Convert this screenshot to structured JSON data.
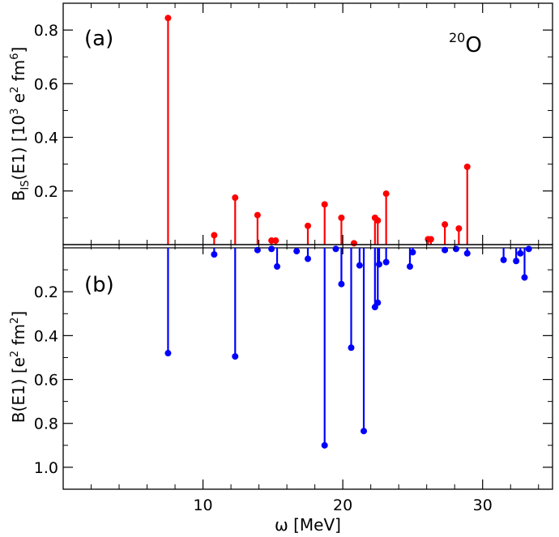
{
  "chart_data": [
    {
      "type": "stem",
      "panel_label": "(a)",
      "annotation": {
        "mass_number": "20",
        "element": "O"
      },
      "ylabel": {
        "prefix": "B",
        "sub": "IS",
        "middle": "(E1) [10",
        "sup1": "3",
        "mid2": " e",
        "sup2": "2",
        "mid3": " fm",
        "sup3": "6",
        "suffix": "]"
      },
      "xlim": [
        0,
        35
      ],
      "ylim": [
        0,
        0.9
      ],
      "yticks": [
        {
          "value": 0.2,
          "label": "0.2"
        },
        {
          "value": 0.4,
          "label": "0.4"
        },
        {
          "value": 0.6,
          "label": "0.6"
        },
        {
          "value": 0.8,
          "label": "0.8"
        }
      ],
      "color": "#ff0000",
      "x": [
        7.5,
        10.8,
        12.3,
        13.9,
        14.9,
        15.2,
        17.5,
        18.7,
        19.9,
        20.8,
        22.3,
        22.5,
        23.1,
        26.1,
        26.3,
        27.3,
        28.3,
        28.9
      ],
      "y": [
        0.845,
        0.035,
        0.175,
        0.11,
        0.015,
        0.015,
        0.07,
        0.15,
        0.1,
        0.005,
        0.1,
        0.09,
        0.19,
        0.02,
        0.02,
        0.075,
        0.06,
        0.29
      ]
    },
    {
      "type": "stem",
      "panel_label": "(b)",
      "ylabel": {
        "prefix": "B(E1) [e",
        "sup1": "2",
        "mid2": " fm",
        "sup2": "2",
        "suffix": "]"
      },
      "xlim": [
        0,
        35
      ],
      "ylim": [
        0,
        1.1
      ],
      "inverted": true,
      "yticks": [
        {
          "value": 0.2,
          "label": "0.2"
        },
        {
          "value": 0.4,
          "label": "0.4"
        },
        {
          "value": 0.6,
          "label": "0.6"
        },
        {
          "value": 0.8,
          "label": "0.8"
        },
        {
          "value": 1.0,
          "label": "1.0"
        }
      ],
      "color": "#0000ff",
      "x": [
        7.5,
        10.8,
        12.3,
        13.9,
        14.9,
        15.3,
        16.7,
        17.5,
        18.7,
        19.5,
        19.9,
        20.6,
        21.2,
        21.5,
        22.3,
        22.5,
        22.6,
        23.1,
        24.8,
        25.0,
        27.3,
        28.1,
        28.9,
        31.5,
        32.4,
        32.7,
        33.0,
        33.3
      ],
      "y": [
        0.48,
        0.03,
        0.495,
        0.01,
        0.005,
        0.085,
        0.015,
        0.05,
        0.9,
        0.005,
        0.165,
        0.455,
        0.08,
        0.835,
        0.27,
        0.25,
        0.075,
        0.065,
        0.085,
        0.02,
        0.01,
        0.005,
        0.025,
        0.055,
        0.06,
        0.025,
        0.135,
        0.005
      ]
    }
  ],
  "shared_xaxis": {
    "label": "ω [MeV]",
    "xticks": [
      {
        "value": 10,
        "label": "10"
      },
      {
        "value": 20,
        "label": "20"
      },
      {
        "value": 30,
        "label": "30"
      }
    ]
  }
}
